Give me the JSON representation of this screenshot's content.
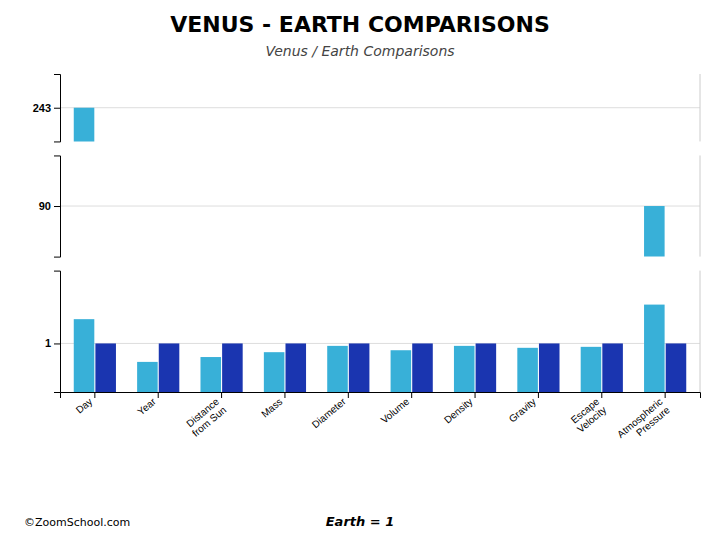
{
  "chart_data": [
    {
      "type": "bar",
      "title": "VENUS - EARTH COMPARISONS",
      "subtitle": "Venus / Earth Comparisons",
      "categories": [
        "Day",
        "Year",
        "Distance\nfrom Sun",
        "Mass",
        "Diameter",
        "Volume",
        "Density",
        "Gravity",
        "Escape\nVelocity",
        "Atmospheric\nPressure"
      ],
      "values": [
        243.0,
        null,
        null,
        null,
        null,
        null,
        null,
        null,
        null,
        null
      ],
      "color": "#38b0d8",
      "ylim": [
        233.0,
        253.0
      ],
      "yticks": [
        243
      ],
      "grid": true,
      "tick_labels": "y"
    },
    {
      "type": "bar",
      "categories": [
        "Day",
        "Year",
        "Distance\nfrom Sun",
        "Mass",
        "Diameter",
        "Volume",
        "Density",
        "Gravity",
        "Escape\nVelocity",
        "Atmospheric\nPressure"
      ],
      "values": [
        null,
        null,
        null,
        null,
        null,
        null,
        null,
        null,
        null,
        90.0
      ],
      "color": "#38b0d8",
      "ylim": [
        80.0,
        100.0
      ],
      "yticks": [
        90
      ],
      "grid": true,
      "tick_labels": "y"
    },
    {
      "type": "bar",
      "categories": [
        "Day",
        "Year",
        "Distance\nfrom Sun",
        "Mass",
        "Diameter",
        "Volume",
        "Density",
        "Gravity",
        "Escape\nVelocity",
        "Atmospheric\nPressure"
      ],
      "series": [
        {
          "color": "#38b0d8",
          "values": [
            1.5,
            0.62,
            0.72,
            0.82,
            0.95,
            0.86,
            0.95,
            0.91,
            0.93,
            1.8
          ]
        },
        {
          "color": "#1a35b0",
          "values": [
            1.0,
            1.0,
            1.0,
            1.0,
            1.0,
            1.0,
            1.0,
            1.0,
            1.0,
            1.0
          ]
        }
      ],
      "ylim": [
        0.0,
        2.5
      ],
      "yticks": [
        1
      ],
      "grid": true,
      "annotations": [
        "©ZoomSchool.com",
        "Earth = 1"
      ]
    }
  ]
}
